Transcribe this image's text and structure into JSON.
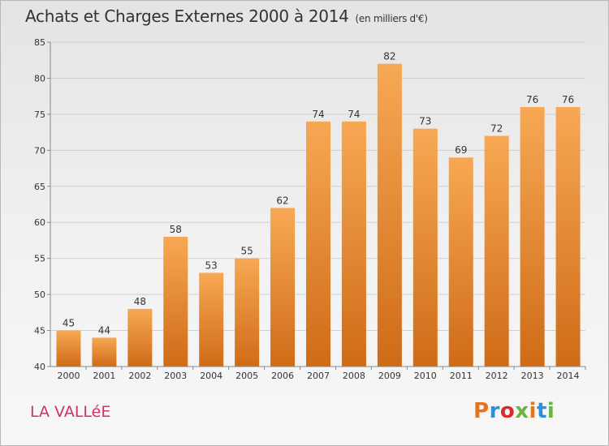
{
  "header": {
    "title": "Achats et Charges Externes 2000 à 2014",
    "unit": "(en milliers d'€)"
  },
  "footer": {
    "location": "LA VALLéE",
    "logo": "Proxiti",
    "logo_colors": [
      "#e8731c",
      "#2e8fd8",
      "#d92b2b",
      "#6ab43e",
      "#e8731c",
      "#2e8fd8",
      "#6ab43e"
    ]
  },
  "colors": {
    "bar_light": "#f7a854",
    "bar_dark": "#cf6b17",
    "grid": "#cfcfcf",
    "location": "#cc3366"
  },
  "chart_data": {
    "type": "bar",
    "title": "Achats et Charges Externes 2000 à 2014",
    "subtitle": "(en milliers d'€)",
    "categories": [
      "2000",
      "2001",
      "2002",
      "2003",
      "2004",
      "2005",
      "2006",
      "2007",
      "2008",
      "2009",
      "2010",
      "2011",
      "2012",
      "2013",
      "2014"
    ],
    "values": [
      45,
      44,
      48,
      58,
      53,
      55,
      62,
      74,
      74,
      82,
      73,
      69,
      72,
      76,
      76
    ],
    "ylim": [
      40,
      85
    ],
    "yticks": [
      40,
      45,
      50,
      55,
      60,
      65,
      70,
      75,
      80,
      85
    ],
    "grid": true,
    "xlabel": "",
    "ylabel": ""
  }
}
